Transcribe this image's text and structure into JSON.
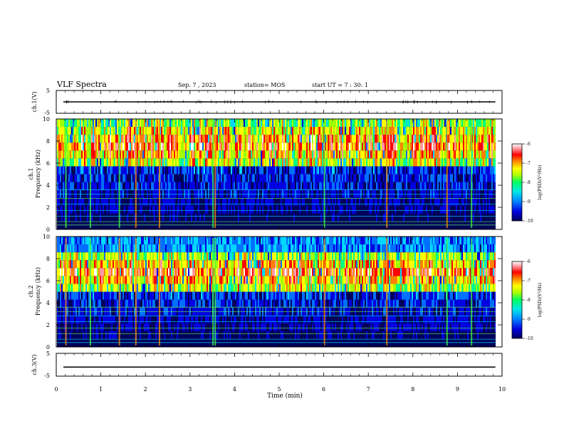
{
  "header": {
    "title": "VLF Spectra",
    "date": "Sep. 7 , 2023",
    "station": "station= MOS",
    "start": "start  UT =  7 : 30: 1"
  },
  "chart_data": [
    {
      "type": "line",
      "panel": "ch1-voltage",
      "ylabel": "ch.1(V)",
      "ylim": [
        -5,
        5
      ],
      "yticks": [
        "5",
        "-5"
      ],
      "xlim": [
        0,
        10
      ],
      "series": [
        {
          "x": [
            0,
            9.85
          ],
          "y": [
            0,
            0
          ]
        }
      ]
    },
    {
      "type": "heatmap",
      "panel": "ch1-spectrogram",
      "ylabel_top": "ch.1",
      "ylabel": "Frequency (kHz)",
      "ylim": [
        0,
        10
      ],
      "yticks": [
        "0",
        "2",
        "4",
        "6",
        "8",
        "10"
      ],
      "xlim": [
        0,
        10
      ],
      "data_end_min": 9.85,
      "intense_band_khz": [
        5.5,
        9.8
      ],
      "colorbar": {
        "label": "log(PSD)(V²/Hz)",
        "range": [
          -10,
          -6
        ],
        "ticks": [
          "-6",
          "-7",
          "-8",
          "-9",
          "-10"
        ]
      }
    },
    {
      "type": "heatmap",
      "panel": "ch2-spectrogram",
      "ylabel_top": "ch.2",
      "ylabel": "Frequency (kHz)",
      "ylim": [
        0,
        10
      ],
      "yticks": [
        "0",
        "2",
        "4",
        "6",
        "8",
        "10"
      ],
      "xlim": [
        0,
        10
      ],
      "data_end_min": 9.85,
      "intense_band_khz": [
        5.0,
        8.5
      ],
      "colorbar": {
        "label": "log(PSD)(V²/Hz)",
        "range": [
          -10,
          -6
        ],
        "ticks": [
          "-6",
          "-7",
          "-8",
          "-9",
          "-10"
        ]
      }
    },
    {
      "type": "line",
      "panel": "ch3-voltage",
      "ylabel": "ch.3(V)",
      "ylim": [
        -5,
        5
      ],
      "yticks": [
        "5",
        "-5"
      ],
      "xlim": [
        0,
        10
      ],
      "xlabel": "Time  (min)",
      "xticks": [
        "0",
        "1",
        "2",
        "3",
        "4",
        "5",
        "6",
        "7",
        "8",
        "9",
        "10"
      ],
      "series": [
        {
          "x": [
            0,
            9.85
          ],
          "y": [
            -1,
            -1
          ]
        }
      ]
    }
  ],
  "colors": {
    "scale": [
      "#00005a",
      "#0000e0",
      "#0070ff",
      "#00d8ff",
      "#00ff80",
      "#a0ff00",
      "#ffff00",
      "#ff8000",
      "#ff0000",
      "#ff9aa0",
      "#ffffff"
    ]
  }
}
